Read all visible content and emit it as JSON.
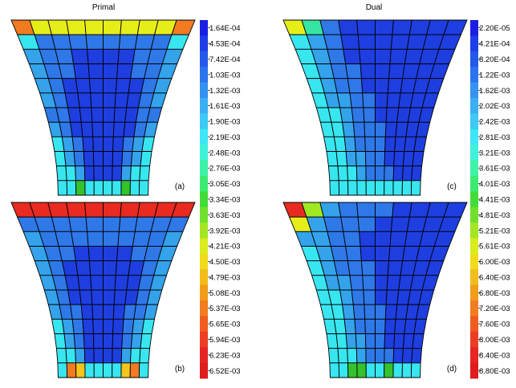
{
  "columns": [
    {
      "title": "Primal"
    },
    {
      "title": "Dual"
    }
  ],
  "panels": [
    {
      "label": "(a)",
      "grid": [
        "OJJJJJJJJO",
        "CDDDDDDDDC",
        "EDDBBBBDDE",
        "EDDBBBBDDE",
        "EDBBBBBBDE",
        "EDBBBBBBDE",
        "DDBBBBBBDD",
        "EDBBBBBBDE",
        "CEDBBBBDEC",
        "CEDBBBBDEC",
        "CCEBBBBECC",
        "CCGCCCCGCC"
      ]
    },
    {
      "label": "(b)",
      "grid": [
        "RRRRRRRRRR",
        "DDDDDDDDDD",
        "EDDDDDDDDE",
        "EDDBBBBDDE",
        "EDBBBBBBDE",
        "EDBBBBBBDE",
        "EDBBBBBBDE",
        "EDDBBBBDDE",
        "CEDBBBBDEC",
        "CEDBBBBDEC",
        "CCEBBBBECC",
        "COKCCCCKOC"
      ]
    },
    {
      "label": "(c)",
      "grid": [
        "JFDBBBBBBB",
        "CEDBBBBBBB",
        "CEDBBBBBBB",
        "CEDDBBBBBB",
        "CEDDBBBBBB",
        "CEEDDBBBBB",
        "CCEDDBBBBB",
        "CCEDDDBBBB",
        "CCEDDDBBBB",
        "CCEEDDBBBB",
        "CCCEDDDBBB",
        "CCCCCCCCCC"
      ]
    },
    {
      "label": "(d)",
      "grid": [
        "RHEDDDBBBB",
        "JEDDDBBBBB",
        "EEDDBBBBBB",
        "CEDDBBBBBB",
        "CEDDDBBBBB",
        "CEEDDBBBBB",
        "CCEDDBBBBB",
        "CCEDDDBBBB",
        "CCEDDDBBBB",
        "CCEEDDBBBB",
        "CCCEDDDBBB",
        "CCGGCCGCCC"
      ]
    }
  ],
  "colormap": {
    "B": "#1e3ee0",
    "D": "#2f78e8",
    "E": "#34a3ec",
    "C": "#38e6f0",
    "F": "#34e6a2",
    "G": "#36c22c",
    "H": "#9ee824",
    "J": "#e6ee1a",
    "K": "#f2c61a",
    "O": "#f27a20",
    "R": "#e82a20"
  },
  "colorbars": [
    {
      "labels": [
        "1.64E-04",
        "4.53E-04",
        "7.42E-04",
        "1.03E-03",
        "1.32E-03",
        "1.61E-03",
        "1.90E-03",
        "2.19E-03",
        "2.48E-03",
        "2.76E-03",
        "3.05E-03",
        "3.34E-03",
        "3.63E-03",
        "3.92E-03",
        "4.21E-03",
        "4.50E-03",
        "4.79E-03",
        "5.08E-03",
        "5.37E-03",
        "5.65E-03",
        "5.94E-03",
        "6.23E-03",
        "6.52E-03"
      ],
      "colors": [
        "#1a1ee2",
        "#1e3ee8",
        "#2458ea",
        "#2c74ee",
        "#3492f0",
        "#3aaef2",
        "#3ccaf4",
        "#3ee6f6",
        "#3ef2d8",
        "#3ef2a8",
        "#3cec72",
        "#42dc3a",
        "#70e02c",
        "#a4e624",
        "#d8ec1e",
        "#f0dc1a",
        "#f2bc1a",
        "#f29c1c",
        "#f27c1e",
        "#f05c20",
        "#ec3e22",
        "#e62622",
        "#e01c1c"
      ]
    },
    {
      "labels": [
        "2.20E-05",
        "4.21E-04",
        "8.20E-04",
        "1.22E-03",
        "1.62E-03",
        "2.02E-03",
        "2.42E-03",
        "2.81E-03",
        "3.21E-03",
        "3.61E-03",
        "4.01E-03",
        "4.41E-03",
        "4.81E-03",
        "5.21E-03",
        "5.61E-03",
        "6.00E-03",
        "6.40E-03",
        "6.80E-03",
        "7.20E-03",
        "7.60E-03",
        "8.00E-03",
        "8.40E-03",
        "8.80E-03"
      ],
      "colors": [
        "#1a1ee2",
        "#1e3ee8",
        "#2458ea",
        "#2c74ee",
        "#3492f0",
        "#3aaef2",
        "#3ccaf4",
        "#3ee6f6",
        "#3ef2d8",
        "#3ef2a8",
        "#3cec72",
        "#42dc3a",
        "#70e02c",
        "#a4e624",
        "#d8ec1e",
        "#f0dc1a",
        "#f2bc1a",
        "#f29c1c",
        "#f27c1e",
        "#f05c20",
        "#ec3e22",
        "#e62622",
        "#e01c1c"
      ]
    }
  ]
}
